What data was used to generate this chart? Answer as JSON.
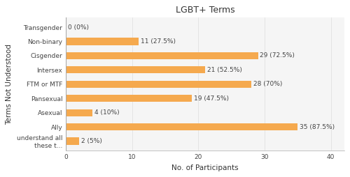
{
  "title": "LGBT+ Terms",
  "xlabel": "No. of Participants",
  "ylabel": "Terms Not Understood",
  "categories": [
    "understand all\nthese t...",
    "Ally",
    "Asexual",
    "Pansexual",
    "FTM or MTF",
    "Intersex",
    "Cisgender",
    "Non-binary",
    "Transgender"
  ],
  "values": [
    2,
    35,
    4,
    19,
    28,
    21,
    29,
    11,
    0
  ],
  "labels": [
    "2 (5%)",
    "35 (87.5%)",
    "4 (10%)",
    "19 (47.5%)",
    "28 (70%)",
    "21 (52.5%)",
    "29 (72.5%)",
    "11 (27.5%)",
    "0 (0%)"
  ],
  "bar_color": "#F5A94E",
  "xlim": [
    0,
    42
  ],
  "xticks": [
    0,
    10,
    20,
    30,
    40
  ],
  "background_color": "#ffffff",
  "plot_bg_color": "#f5f5f5",
  "title_fontsize": 9,
  "label_fontsize": 6.5,
  "tick_fontsize": 6.5,
  "axis_label_fontsize": 7.5,
  "bar_height": 0.5
}
